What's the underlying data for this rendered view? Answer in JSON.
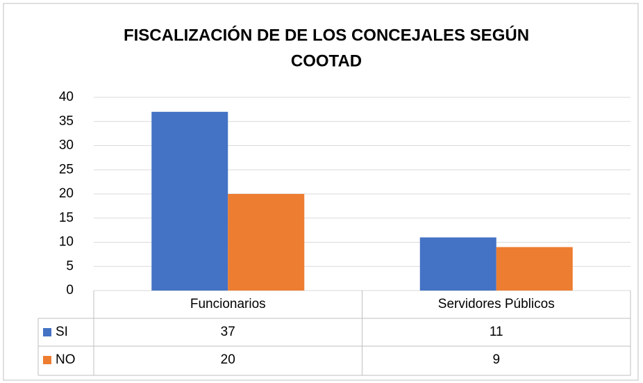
{
  "chart_data": {
    "type": "bar",
    "title": [
      "FISCALIZACIÓN DE  DE LOS CONCEJALES SEGÚN",
      "COOTAD"
    ],
    "categories": [
      "Funcionarios",
      "Servidores Públicos"
    ],
    "series": [
      {
        "name": "SI",
        "color": "#4472c4",
        "values": [
          37,
          11
        ]
      },
      {
        "name": "NO",
        "color": "#ed7d31",
        "values": [
          20,
          9
        ]
      }
    ],
    "ylim": [
      0,
      40
    ],
    "yticks": [
      0,
      5,
      10,
      15,
      20,
      25,
      30,
      35,
      40
    ],
    "grid": true,
    "data_table": true
  }
}
